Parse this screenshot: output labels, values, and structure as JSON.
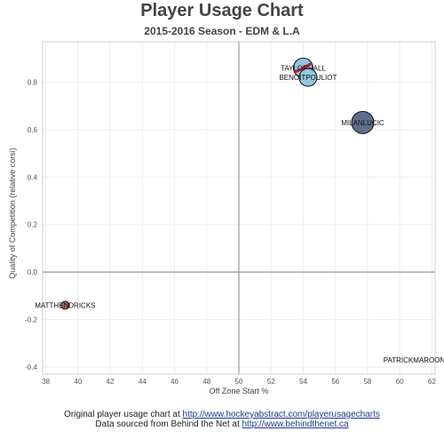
{
  "chart_data": {
    "type": "scatter",
    "title": "Player Usage Chart",
    "subtitle": "2015-2016 Season - EDM & L.A",
    "xlabel": "Off Zone Start %",
    "ylabel": "Quality of Competition (relative corsi)",
    "xlim": [
      37.8,
      62.2
    ],
    "ylim": [
      -0.43,
      0.97
    ],
    "xticks": [
      38,
      40,
      42,
      44,
      46,
      48,
      50,
      52,
      54,
      56,
      58,
      60,
      62
    ],
    "yticks": [
      -0.4,
      -0.2,
      0.0,
      0.2,
      0.4,
      0.6,
      0.8
    ],
    "ytick_labels": [
      "-0.4",
      "-0.2",
      "0.0",
      "0.2",
      "0.4",
      "0.6",
      "0.8"
    ],
    "grid": true,
    "reference_lines": {
      "x": 50,
      "y": 0
    },
    "points": [
      {
        "label": "TAYLORHALL",
        "x": 54.0,
        "y": 0.86,
        "size": 22,
        "color": "#93c6e0",
        "slash": true,
        "slash_color": "#c8203a"
      },
      {
        "label": "BENOITPOULIOT",
        "x": 54.3,
        "y": 0.82,
        "size": 20,
        "color": "#93c6e0",
        "slash": false
      },
      {
        "label": "MILANLUCIC",
        "x": 57.7,
        "y": 0.63,
        "size": 25,
        "color": "#5e6f8d",
        "slash": false
      },
      {
        "label": "MATTHENDRICKS",
        "x": 39.2,
        "y": -0.14,
        "size": 9,
        "color": "#b06a4e",
        "slash": false
      },
      {
        "label": "PATRICKMAROON",
        "x": 60.9,
        "y": -0.37,
        "size": 0,
        "color": "#ffffff",
        "slash": false
      }
    ]
  },
  "footer": {
    "line1_text": "Original player usage chart at ",
    "line1_link": "http://www.hockeyabstract.com/playerusagecharts",
    "line2_text": "Data sourced from Behind the Net at ",
    "line2_link": "http://www.behindthenet.ca"
  }
}
